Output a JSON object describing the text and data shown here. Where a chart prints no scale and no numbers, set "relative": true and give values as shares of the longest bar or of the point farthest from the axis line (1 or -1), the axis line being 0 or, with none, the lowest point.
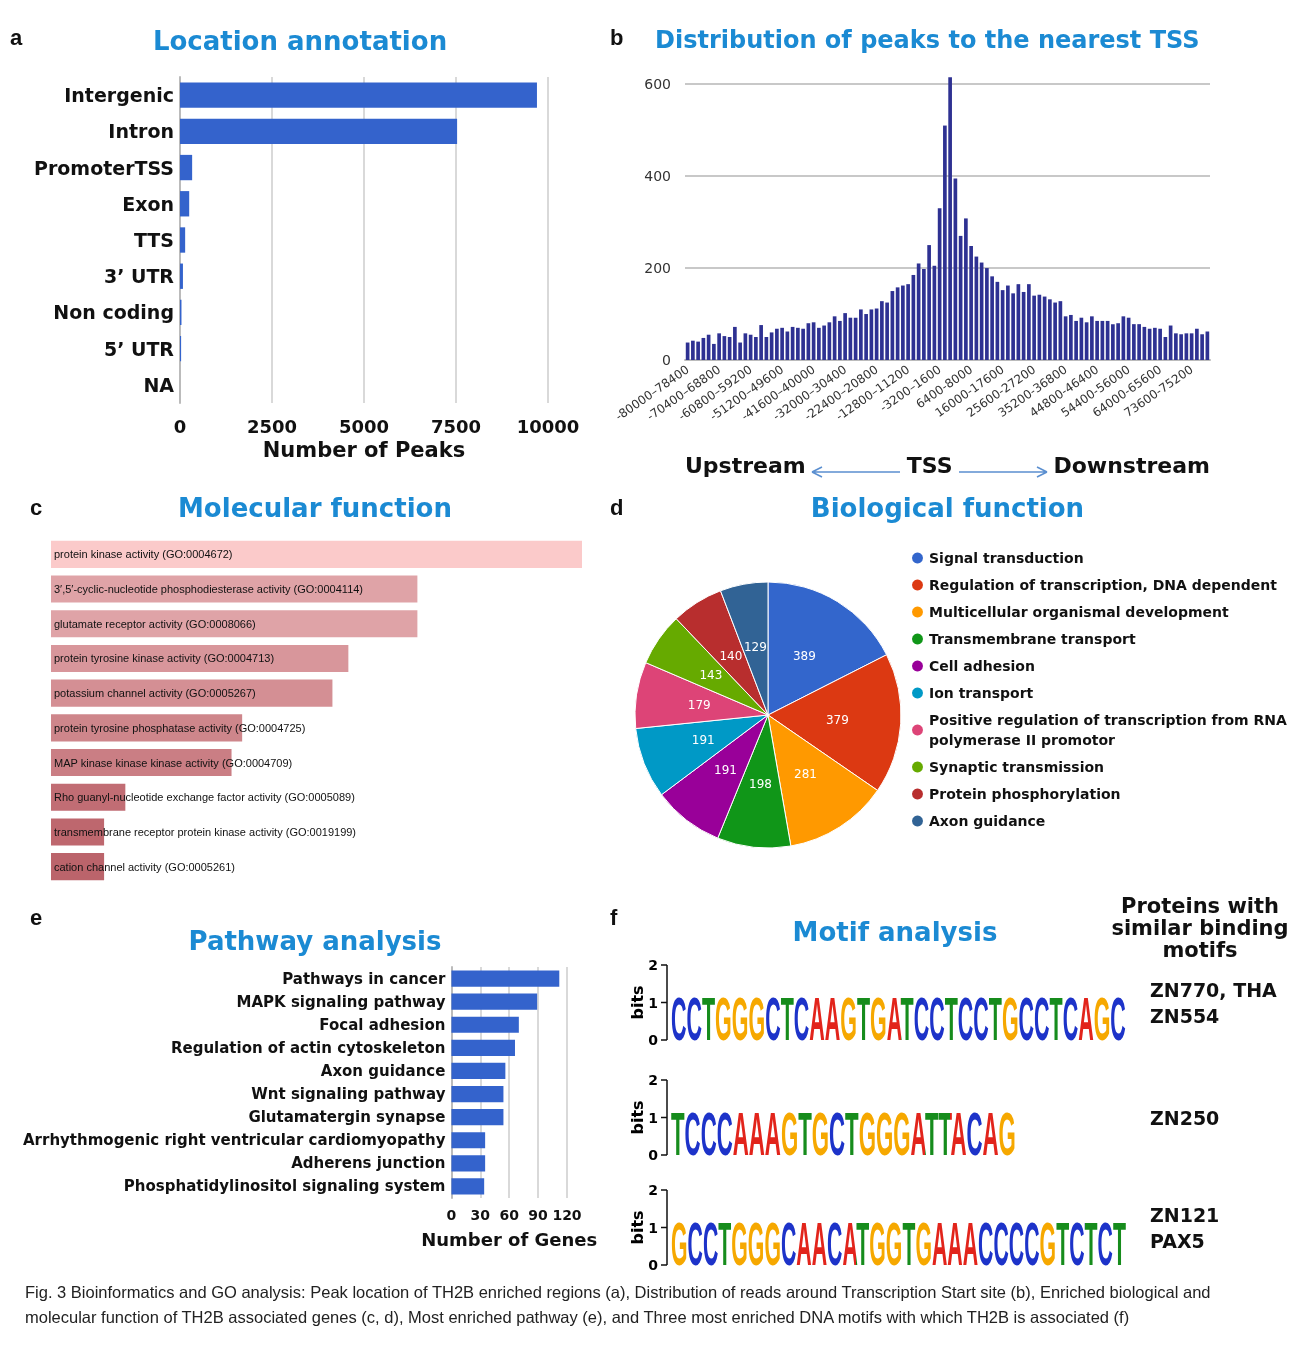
{
  "chart_data": [
    {
      "type": "bar",
      "orientation": "horizontal",
      "title": "Location annotation",
      "xlabel": "Number of Peaks",
      "annotations": [
        "a"
      ],
      "categories": [
        "Intergenic",
        "Intron",
        "PromoterTSS",
        "Exon",
        "TTS",
        "3’ UTR",
        "Non coding",
        "5’ UTR",
        "NA"
      ],
      "values": [
        9700,
        7530,
        330,
        250,
        140,
        80,
        40,
        30,
        0
      ],
      "color": "#3463cc",
      "xlim": [
        0,
        10000
      ],
      "xticks": [
        0,
        2500,
        5000,
        7500,
        10000
      ],
      "grid": "x"
    },
    {
      "type": "bar",
      "title": "Distribution of peaks to the nearest TSS",
      "annotations": [
        "b",
        "Upstream",
        "TSS",
        "Downstream"
      ],
      "categories": [
        "-80000–78400",
        null,
        null,
        null,
        null,
        null,
        "-70400–68800",
        null,
        null,
        null,
        null,
        null,
        "-60800–59200",
        null,
        null,
        null,
        null,
        null,
        "-51200–49600",
        null,
        null,
        null,
        null,
        null,
        "-41600–40000",
        null,
        null,
        null,
        null,
        null,
        "-32000–30400",
        null,
        null,
        null,
        null,
        null,
        "-22400–20800",
        null,
        null,
        null,
        null,
        null,
        "-12800–11200",
        null,
        null,
        null,
        null,
        null,
        "-3200–1600",
        null,
        null,
        null,
        null,
        null,
        "6400-8000",
        null,
        null,
        null,
        null,
        null,
        "16000-17600",
        null,
        null,
        null,
        null,
        null,
        "25600-27200",
        null,
        null,
        null,
        null,
        null,
        "35200-36800",
        null,
        null,
        null,
        null,
        null,
        "44800-46400",
        null,
        null,
        null,
        null,
        null,
        "54400-56000",
        null,
        null,
        null,
        null,
        null,
        "64000-65600",
        null,
        null,
        null,
        null,
        null,
        "73600-75200",
        null,
        null,
        null
      ],
      "values": [
        38,
        42,
        40,
        48,
        55,
        35,
        58,
        52,
        50,
        72,
        38,
        58,
        55,
        50,
        76,
        50,
        60,
        68,
        70,
        62,
        72,
        70,
        68,
        80,
        82,
        70,
        75,
        82,
        95,
        85,
        102,
        92,
        92,
        110,
        100,
        110,
        112,
        128,
        125,
        150,
        158,
        162,
        165,
        185,
        210,
        198,
        250,
        205,
        330,
        510,
        615,
        395,
        270,
        308,
        248,
        225,
        212,
        200,
        182,
        170,
        152,
        162,
        145,
        165,
        148,
        165,
        140,
        142,
        138,
        132,
        125,
        128,
        95,
        98,
        85,
        92,
        82,
        95,
        85,
        85,
        85,
        78,
        80,
        95,
        92,
        78,
        78,
        72,
        68,
        70,
        68,
        50,
        75,
        58,
        56,
        58,
        58,
        68,
        56,
        62
      ],
      "color": "#2e3192",
      "ylim": [
        0,
        620
      ],
      "yticks": [
        0,
        200,
        400,
        600
      ],
      "grid": "y"
    },
    {
      "type": "bar",
      "orientation": "horizontal",
      "relative": true,
      "title": "Molecular function",
      "annotations": [
        "c"
      ],
      "categories": [
        "protein kinase activity (GO:0004672)",
        "3′,5′-cyclic-nucleotide phosphodiesterase activity (GO:0004114)",
        "glutamate receptor activity (GO:0008066)",
        "protein tyrosine kinase activity (GO:0004713)",
        "potassium channel activity (GO:0005267)",
        "protein tyrosine phosphatase activity (GO:0004725)",
        "MAP kinase kinase kinase activity (GO:0004709)",
        "Rho guanyl-nucleotide exchange factor activity (GO:0005089)",
        "transmembrane receptor protein kinase activity (GO:0019199)",
        "cation channel activity (GO:0005261)"
      ],
      "values": [
        1,
        0.69,
        0.69,
        0.56,
        0.53,
        0.36,
        0.34,
        0.14,
        0.1,
        0.1
      ],
      "colors": [
        "#fbcaca",
        "#dfa3a7",
        "#dfa3a7",
        "#d8969b",
        "#d48f94",
        "#ce868b",
        "#ca7e84",
        "#c16d74",
        "#be676e",
        "#bb646b"
      ]
    },
    {
      "type": "pie",
      "title": "Biological function",
      "annotations": [
        "d"
      ],
      "data_labels": true,
      "legend": "right",
      "categories": [
        "Signal transduction",
        "Regulation of transcription, DNA dependent",
        "Multicellular organismal development",
        "Transmembrane transport",
        "Cell adhesion",
        "Ion transport",
        "Positive regulation of transcription from RNA polymerase II promotor",
        "Synaptic transmission",
        "Protein phosphorylation",
        "Axon guidance"
      ],
      "values": [
        389,
        379,
        281,
        198,
        191,
        191,
        179,
        143,
        140,
        129
      ],
      "colors": [
        "#3366cc",
        "#dc3912",
        "#ff9900",
        "#109618",
        "#990099",
        "#0099c6",
        "#dd4477",
        "#66aa00",
        "#b82e2e",
        "#316395"
      ]
    },
    {
      "type": "bar",
      "orientation": "horizontal",
      "title": "Pathway analysis",
      "xlabel": "Number of Genes",
      "annotations": [
        "e"
      ],
      "categories": [
        "Pathways in cancer",
        "MAPK signaling pathway",
        "Focal adhesion",
        "Regulation of actin cytoskeleton",
        "Axon guidance",
        "Wnt signaling pathway",
        "Glutamatergin synapse",
        "Arrhythmogenic right ventricular cardiomyopathy",
        "Adherens junction",
        "Phosphatidylinositol signaling system"
      ],
      "values": [
        112,
        89,
        70,
        66,
        56,
        54,
        54,
        35,
        35,
        34
      ],
      "color": "#3463cc",
      "xlim": [
        0,
        120
      ],
      "xticks": [
        0,
        30,
        60,
        90,
        120
      ],
      "grid": "x"
    },
    {
      "type": "other",
      "title": "Motif analysis",
      "ylabel": "bits",
      "annotations": [
        "f",
        "Proteins with similar binding motifs",
        "2",
        "1",
        "0",
        "CCTGGGCTCAAGTGATCCTCCTGCCTCAGC",
        "ZN770, THA",
        "ZN554",
        "2",
        "1",
        "0",
        "TCCCAAAGTGCTGGGATTACAG",
        "ZN250",
        "2",
        "1",
        "0",
        "GCCTGGGCAACATGGTGAAACCCCGTCTCT",
        "ZN121",
        "PAX5",
        "Fig. 3 Bioinformatics and GO analysis: Peak location of TH2B enriched regions (a), Distribution of reads around Transcription Start site (b), Enriched biological and molecular function of TH2B associated genes (c, d), Most enriched pathway (e), and Three most enriched DNA motifs with which TH2B is associated (f)"
      ]
    }
  ]
}
